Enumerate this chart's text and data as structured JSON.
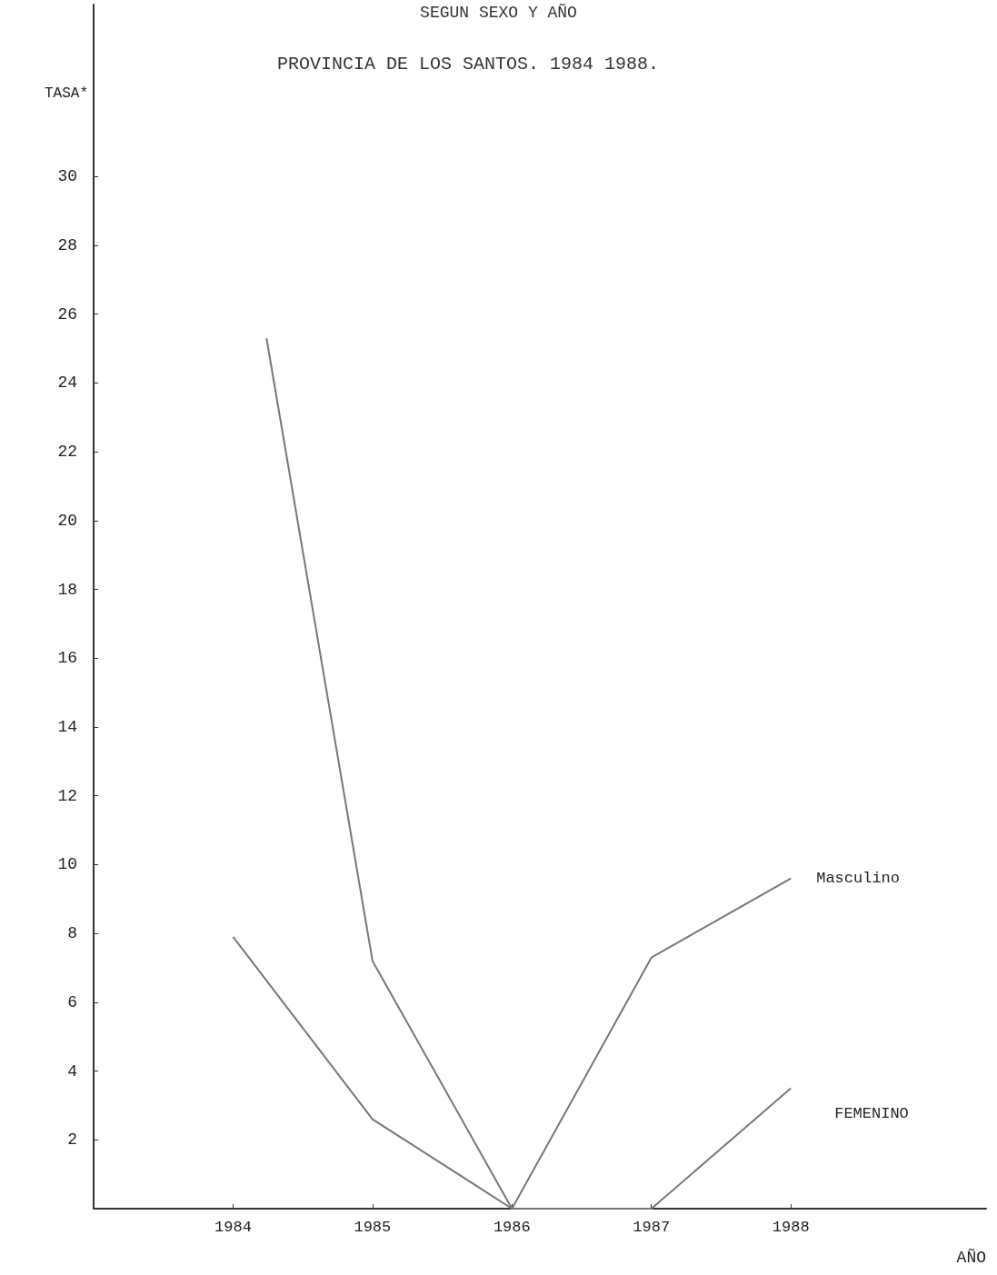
{
  "chart_data": {
    "type": "line",
    "title": "SEGUN SEXO Y AÑO",
    "subtitle": "PROVINCIA DE LOS SANTOS. 1984 1988.",
    "ylabel": "TASA*",
    "xlabel": "AÑO",
    "xlim": [
      1983,
      1989.4
    ],
    "xticks": [
      1984,
      1985,
      1986,
      1987,
      1988
    ],
    "ylim": [
      0,
      35
    ],
    "yticks": [
      2,
      4,
      6,
      8,
      10,
      12,
      14,
      16,
      18,
      20,
      22,
      24,
      26,
      28,
      30
    ],
    "series": [
      {
        "name": "Masculino",
        "color": "#777777",
        "x": [
          1984.24,
          1985,
          1986,
          1987,
          1988
        ],
        "values": [
          25.3,
          7.2,
          0,
          7.3,
          9.6
        ]
      },
      {
        "name": "FEMENINO",
        "color": "#777777",
        "x": [
          1984,
          1985,
          1986,
          1987,
          1988
        ],
        "values": [
          7.9,
          2.6,
          0,
          0,
          3.5
        ]
      }
    ],
    "grid": false,
    "legend": false,
    "marker": "none",
    "line_style": "solid"
  }
}
